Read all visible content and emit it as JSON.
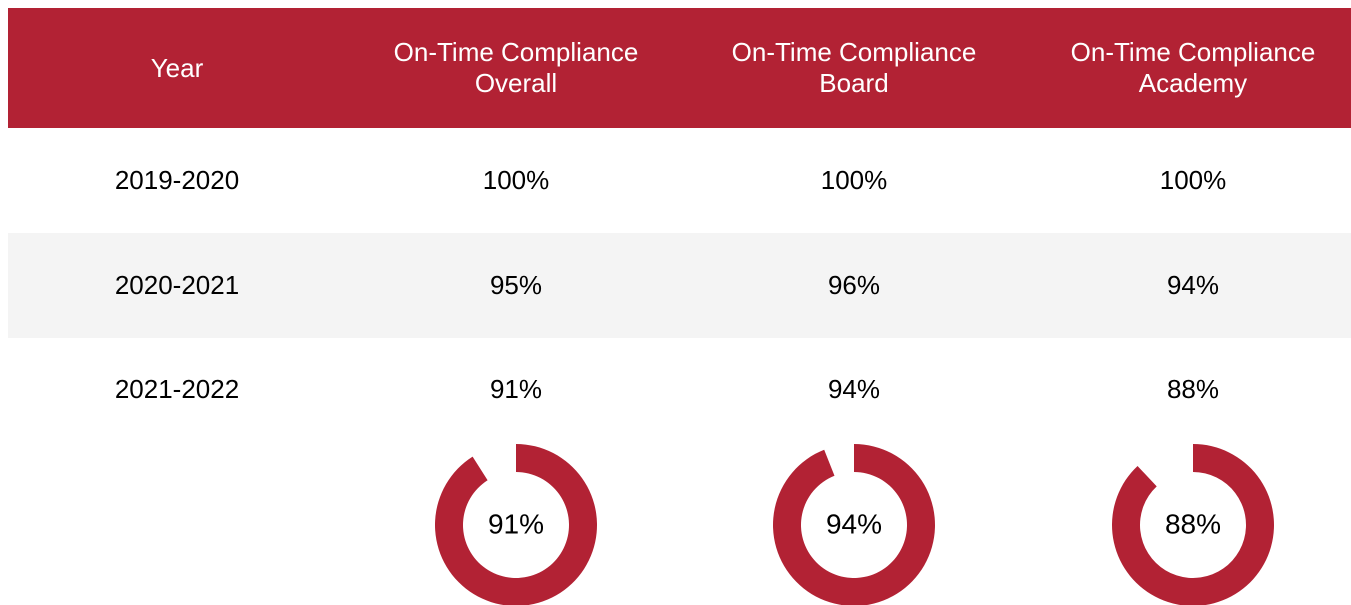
{
  "table": {
    "header": [
      "Year",
      "On-Time Compliance Overall",
      "On-Time Compliance Board",
      "On-Time Compliance Academy"
    ],
    "rows": [
      [
        "2019-2020",
        "100%",
        "100%",
        "100%"
      ],
      [
        "2020-2021",
        "95%",
        "96%",
        "94%"
      ],
      [
        "2021-2022",
        "91%",
        "94%",
        "88%"
      ]
    ]
  },
  "donuts": {
    "type": "donut",
    "values": [
      91,
      94,
      88
    ],
    "value_labels": [
      "91%",
      "94%",
      "88%"
    ],
    "color": "#b22234"
  }
}
